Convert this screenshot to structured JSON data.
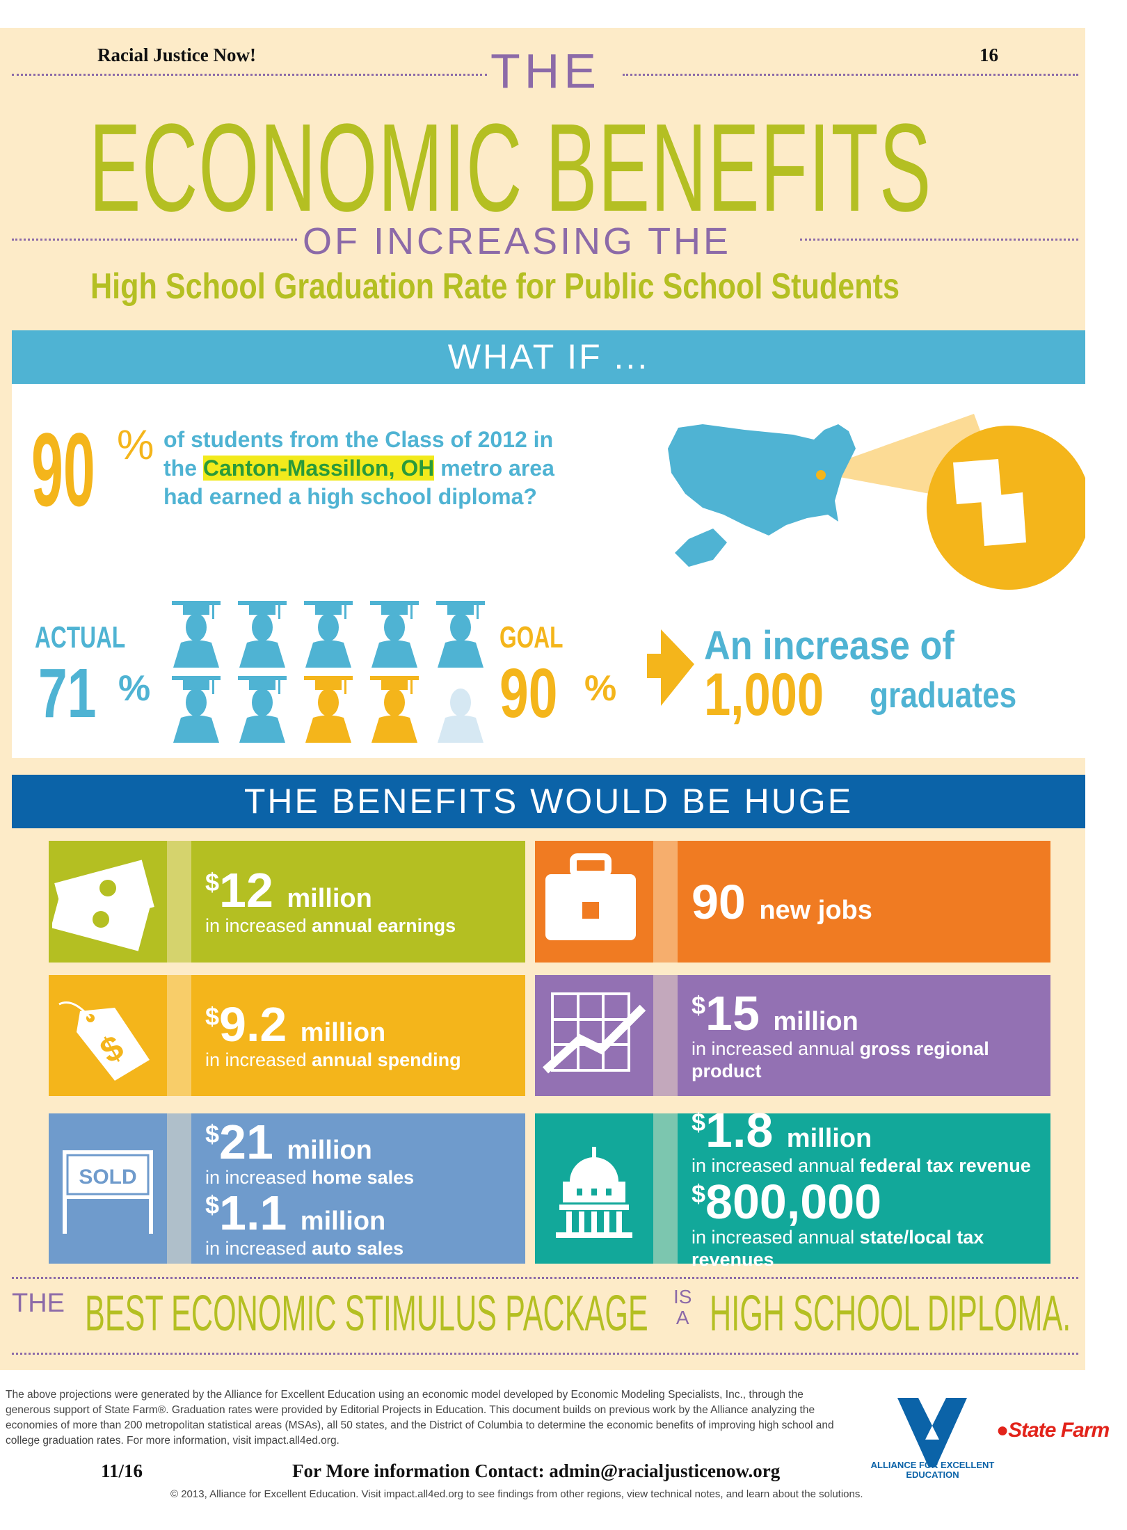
{
  "header": {
    "org": "Racial Justice Now!",
    "page_number": "16"
  },
  "title": {
    "line1": "THE",
    "line2": "ECONOMIC BENEFITS",
    "line3": "OF INCREASING THE",
    "line4": "High School Graduation Rate for Public School Students"
  },
  "what_if": {
    "heading": "WHAT IF ...",
    "percent": "90",
    "percent_sign": "%",
    "text_a": "of students from the Class of 2012 in",
    "text_b": "the",
    "highlight": "Canton-Massillon, OH",
    "text_c": "metro area",
    "text_d": "had earned a high school diploma?"
  },
  "rates": {
    "actual_label": "ACTUAL",
    "actual_value": "71",
    "goal_label": "GOAL",
    "goal_value": "90",
    "pct": "%",
    "increase_label": "An increase of",
    "increase_value": "1,000",
    "increase_unit": "graduates",
    "icons_total": 10,
    "icons_actual": 7,
    "icons_added": 2
  },
  "benefits": {
    "heading": "THE BENEFITS WOULD BE HUGE",
    "cards": [
      {
        "icon": "money-icon",
        "color": "#b4bf22",
        "items": [
          {
            "cur": "$",
            "num": "12",
            "unit": "million",
            "pre": "in increased ",
            "bold": "annual earnings"
          }
        ]
      },
      {
        "icon": "briefcase-icon",
        "color": "#f07b22",
        "items": [
          {
            "cur": "",
            "num": "90",
            "unit": "new jobs",
            "pre": "",
            "bold": ""
          }
        ]
      },
      {
        "icon": "price-tag-icon",
        "color": "#f4b51b",
        "items": [
          {
            "cur": "$",
            "num": "9.2",
            "unit": "million",
            "pre": "in increased ",
            "bold": "annual spending"
          }
        ]
      },
      {
        "icon": "growth-chart-icon",
        "color": "#9371b3",
        "items": [
          {
            "cur": "$",
            "num": "15",
            "unit": "million",
            "pre": "in increased annual ",
            "bold": "gross regional product"
          }
        ]
      },
      {
        "icon": "sold-sign-icon",
        "color": "#6f9bcc",
        "sign": "SOLD",
        "items": [
          {
            "cur": "$",
            "num": "21",
            "unit": "million",
            "pre": "in increased ",
            "bold": "home sales"
          },
          {
            "cur": "$",
            "num": "1.1",
            "unit": "million",
            "pre": "in increased ",
            "bold": "auto sales"
          }
        ]
      },
      {
        "icon": "capitol-building-icon",
        "color": "#12a89a",
        "items": [
          {
            "cur": "$",
            "num": "1.8",
            "unit": "million",
            "pre": "in increased annual ",
            "bold": "federal tax revenue"
          },
          {
            "cur": "$",
            "num": "800,000",
            "unit": "",
            "pre": "in increased annual ",
            "bold": "state/local tax revenues"
          }
        ]
      }
    ]
  },
  "tagline": {
    "the": "THE",
    "a": "BEST ECONOMIC STIMULUS PACKAGE",
    "is": "IS",
    "a2": "A",
    "b": "HIGH SCHOOL DIPLOMA."
  },
  "footer": {
    "note": "The above projections were generated by the Alliance for Excellent Education using an economic model developed by Economic Modeling Specialists, Inc., through the generous support of State Farm®. Graduation rates were provided by Editorial Projects in Education. This document builds on previous work by the Alliance analyzing the economies of more than 200 metropolitan statistical areas (MSAs), all 50 states, and the District of Columbia to determine the economic benefits of improving high school and college graduation rates. For more information, visit impact.all4ed.org.",
    "date": "11/16",
    "contact": "For More information Contact: admin@racialjusticenow.org",
    "copyright": "© 2013, Alliance for Excellent Education. Visit impact.all4ed.org to see findings from other regions, view technical notes, and learn about the solutions.",
    "alliance_logo": "ALLIANCE FOR EXCELLENT EDUCATION",
    "statefarm_logo": "State Farm"
  },
  "colors": {
    "cream": "#fdebc8",
    "green": "#b4bf22",
    "purple": "#8c6aa8",
    "blue": "#4fb3d3",
    "dark_blue": "#0b63a8",
    "gold": "#f4b51b"
  }
}
